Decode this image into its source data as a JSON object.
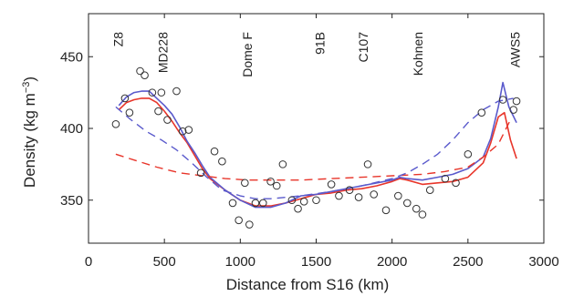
{
  "chart_data": {
    "type": "line",
    "title": "",
    "xlabel": "Distance from S16 (km)",
    "ylabel_main": "Density (kg m",
    "ylabel_sup": "−3",
    "ylabel_tail": ")",
    "xlim": [
      0,
      3000
    ],
    "ylim": [
      320,
      480
    ],
    "xticks": [
      0,
      500,
      1000,
      1500,
      2000,
      2500,
      3000
    ],
    "yticks": [
      350,
      400,
      450
    ],
    "grid": false,
    "sites": [
      {
        "name": "Z8",
        "x": 195
      },
      {
        "name": "MD228",
        "x": 490
      },
      {
        "name": "Dome F",
        "x": 1045
      },
      {
        "name": "91B",
        "x": 1525
      },
      {
        "name": "C107",
        "x": 1810
      },
      {
        "name": "Kohnen",
        "x": 2170
      },
      {
        "name": "AWS5",
        "x": 2810
      }
    ],
    "observations": {
      "x": [
        180,
        240,
        270,
        340,
        370,
        420,
        460,
        480,
        520,
        580,
        620,
        660,
        740,
        830,
        880,
        950,
        990,
        1030,
        1060,
        1100,
        1150,
        1200,
        1240,
        1280,
        1340,
        1380,
        1420,
        1500,
        1600,
        1650,
        1720,
        1780,
        1840,
        1880,
        1960,
        2040,
        2100,
        2160,
        2200,
        2250,
        2350,
        2420,
        2500,
        2590,
        2730,
        2800,
        2820
      ],
      "y": [
        403,
        421,
        411,
        440,
        437,
        425,
        412,
        425,
        406,
        426,
        398,
        399,
        369,
        384,
        377,
        348,
        336,
        362,
        333,
        348,
        348,
        363,
        360,
        375,
        350,
        344,
        349,
        350,
        361,
        353,
        357,
        352,
        375,
        354,
        343,
        353,
        348,
        344,
        340,
        357,
        365,
        362,
        382,
        411,
        420,
        413,
        419
      ]
    },
    "series": [
      {
        "color": "#e8352a",
        "dash": "solid",
        "x": [
          200,
          250,
          300,
          350,
          400,
          450,
          500,
          550,
          600,
          650,
          700,
          750,
          800,
          900,
          1000,
          1100,
          1200,
          1300,
          1400,
          1500,
          1600,
          1700,
          1800,
          1900,
          2000,
          2050,
          2100,
          2200,
          2300,
          2400,
          2500,
          2600,
          2650,
          2700,
          2740,
          2780,
          2820
        ],
        "y": [
          413,
          418,
          420,
          421,
          421,
          418,
          412,
          405,
          397,
          390,
          381,
          372,
          365,
          357,
          350,
          346,
          346,
          348,
          351,
          354,
          355,
          357,
          358,
          360,
          363,
          365,
          364,
          361,
          362,
          363,
          366,
          376,
          390,
          408,
          411,
          392,
          379
        ]
      },
      {
        "color": "#5a5acc",
        "dash": "solid",
        "x": [
          200,
          250,
          300,
          350,
          400,
          450,
          500,
          550,
          600,
          650,
          700,
          750,
          800,
          900,
          1000,
          1100,
          1200,
          1300,
          1400,
          1500,
          1600,
          1700,
          1800,
          1900,
          2000,
          2050,
          2100,
          2200,
          2300,
          2400,
          2500,
          2600,
          2650,
          2700,
          2730,
          2770,
          2820
        ],
        "y": [
          416,
          422,
          425,
          426,
          426,
          421,
          416,
          410,
          401,
          391,
          383,
          374,
          366,
          357,
          350,
          345,
          345,
          348,
          353,
          354,
          356,
          358,
          360,
          362,
          364,
          366,
          365,
          364,
          366,
          368,
          372,
          380,
          393,
          415,
          432,
          415,
          404
        ]
      },
      {
        "color": "#e8352a",
        "dash": "dashed",
        "x": [
          180,
          300,
          450,
          600,
          750,
          900,
          1050,
          1200,
          1400,
          1600,
          1800,
          2000,
          2200,
          2350,
          2500,
          2600,
          2700,
          2780
        ],
        "y": [
          382,
          378,
          373,
          369,
          367,
          365,
          364,
          364,
          364,
          365,
          366,
          367,
          368,
          370,
          373,
          380,
          389,
          406
        ]
      },
      {
        "color": "#5a5acc",
        "dash": "dashed",
        "x": [
          180,
          280,
          380,
          480,
          580,
          680,
          780,
          880,
          1000,
          1100,
          1200,
          1300,
          1400,
          1600,
          1800,
          2000,
          2100,
          2200,
          2300,
          2400,
          2500,
          2600,
          2700,
          2800
        ],
        "y": [
          415,
          406,
          398,
          392,
          385,
          376,
          366,
          357,
          353,
          351,
          351,
          352,
          353,
          356,
          360,
          365,
          369,
          375,
          382,
          392,
          404,
          413,
          419,
          421
        ]
      }
    ]
  }
}
